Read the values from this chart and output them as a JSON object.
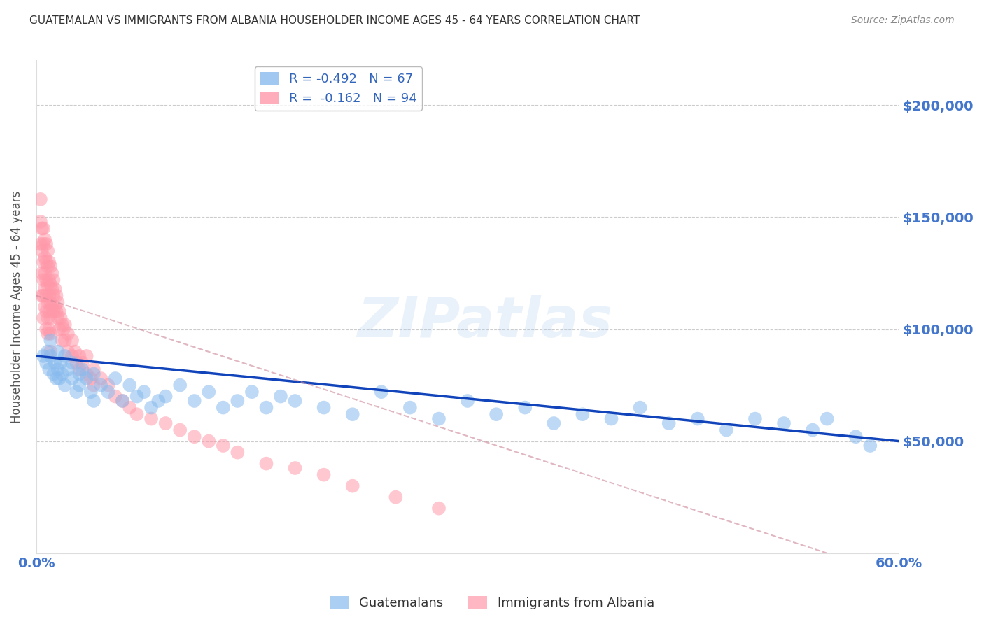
{
  "title": "GUATEMALAN VS IMMIGRANTS FROM ALBANIA HOUSEHOLDER INCOME AGES 45 - 64 YEARS CORRELATION CHART",
  "source": "Source: ZipAtlas.com",
  "ylabel": "Householder Income Ages 45 - 64 years",
  "ytick_labels": [
    "$50,000",
    "$100,000",
    "$150,000",
    "$200,000"
  ],
  "ytick_values": [
    50000,
    100000,
    150000,
    200000
  ],
  "ylim": [
    0,
    220000
  ],
  "xlim": [
    0.0,
    0.6
  ],
  "watermark": "ZIPatlas",
  "legend_blue_r": "R = -0.492",
  "legend_blue_n": "N = 67",
  "legend_pink_r": "R =  -0.162",
  "legend_pink_n": "N = 94",
  "blue_color": "#88BBEE",
  "pink_color": "#FF99AA",
  "blue_line_color": "#1144BB",
  "pink_line_color": "#CC8899",
  "blue_scatter": {
    "x": [
      0.005,
      0.007,
      0.008,
      0.009,
      0.01,
      0.01,
      0.012,
      0.013,
      0.014,
      0.015,
      0.015,
      0.016,
      0.017,
      0.018,
      0.02,
      0.02,
      0.022,
      0.025,
      0.025,
      0.028,
      0.03,
      0.03,
      0.032,
      0.035,
      0.038,
      0.04,
      0.04,
      0.045,
      0.05,
      0.055,
      0.06,
      0.065,
      0.07,
      0.075,
      0.08,
      0.085,
      0.09,
      0.1,
      0.11,
      0.12,
      0.13,
      0.14,
      0.15,
      0.16,
      0.17,
      0.18,
      0.2,
      0.22,
      0.24,
      0.26,
      0.28,
      0.3,
      0.32,
      0.34,
      0.36,
      0.38,
      0.4,
      0.42,
      0.44,
      0.46,
      0.48,
      0.5,
      0.52,
      0.54,
      0.55,
      0.57,
      0.58
    ],
    "y": [
      88000,
      85000,
      90000,
      82000,
      95000,
      88000,
      80000,
      85000,
      78000,
      90000,
      82000,
      78000,
      85000,
      80000,
      75000,
      88000,
      82000,
      78000,
      85000,
      72000,
      80000,
      75000,
      82000,
      78000,
      72000,
      80000,
      68000,
      75000,
      72000,
      78000,
      68000,
      75000,
      70000,
      72000,
      65000,
      68000,
      70000,
      75000,
      68000,
      72000,
      65000,
      68000,
      72000,
      65000,
      70000,
      68000,
      65000,
      62000,
      72000,
      65000,
      60000,
      68000,
      62000,
      65000,
      58000,
      62000,
      60000,
      65000,
      58000,
      60000,
      55000,
      60000,
      58000,
      55000,
      60000,
      52000,
      48000
    ]
  },
  "pink_scatter": {
    "x": [
      0.003,
      0.003,
      0.003,
      0.004,
      0.004,
      0.004,
      0.004,
      0.005,
      0.005,
      0.005,
      0.005,
      0.005,
      0.005,
      0.006,
      0.006,
      0.006,
      0.006,
      0.006,
      0.007,
      0.007,
      0.007,
      0.007,
      0.007,
      0.007,
      0.008,
      0.008,
      0.008,
      0.008,
      0.008,
      0.008,
      0.009,
      0.009,
      0.009,
      0.009,
      0.009,
      0.01,
      0.01,
      0.01,
      0.01,
      0.01,
      0.01,
      0.011,
      0.011,
      0.011,
      0.012,
      0.012,
      0.012,
      0.013,
      0.013,
      0.014,
      0.014,
      0.015,
      0.015,
      0.016,
      0.016,
      0.017,
      0.018,
      0.018,
      0.019,
      0.02,
      0.02,
      0.022,
      0.022,
      0.025,
      0.025,
      0.027,
      0.028,
      0.03,
      0.03,
      0.032,
      0.035,
      0.035,
      0.038,
      0.04,
      0.04,
      0.045,
      0.05,
      0.055,
      0.06,
      0.065,
      0.07,
      0.08,
      0.09,
      0.1,
      0.11,
      0.12,
      0.13,
      0.14,
      0.16,
      0.18,
      0.2,
      0.22,
      0.25,
      0.28
    ],
    "y": [
      158000,
      148000,
      138000,
      145000,
      135000,
      125000,
      115000,
      145000,
      138000,
      130000,
      122000,
      115000,
      105000,
      140000,
      132000,
      125000,
      118000,
      110000,
      138000,
      130000,
      122000,
      115000,
      108000,
      100000,
      135000,
      128000,
      120000,
      112000,
      105000,
      98000,
      130000,
      122000,
      115000,
      108000,
      100000,
      128000,
      120000,
      112000,
      105000,
      98000,
      90000,
      125000,
      118000,
      110000,
      122000,
      115000,
      108000,
      118000,
      110000,
      115000,
      108000,
      112000,
      105000,
      108000,
      100000,
      105000,
      102000,
      95000,
      100000,
      102000,
      95000,
      98000,
      90000,
      95000,
      88000,
      90000,
      85000,
      88000,
      82000,
      85000,
      80000,
      88000,
      78000,
      82000,
      75000,
      78000,
      75000,
      70000,
      68000,
      65000,
      62000,
      60000,
      58000,
      55000,
      52000,
      50000,
      48000,
      45000,
      40000,
      38000,
      35000,
      30000,
      25000,
      20000
    ]
  },
  "blue_trendline": {
    "x": [
      0.0,
      0.6
    ],
    "y": [
      88000,
      50000
    ]
  },
  "pink_trendline": {
    "x": [
      0.0,
      0.55
    ],
    "y": [
      115000,
      0
    ]
  },
  "background_color": "#FFFFFF",
  "grid_color": "#CCCCCC",
  "title_color": "#333333",
  "ytick_color": "#4477CC",
  "xtick_color": "#4477CC"
}
